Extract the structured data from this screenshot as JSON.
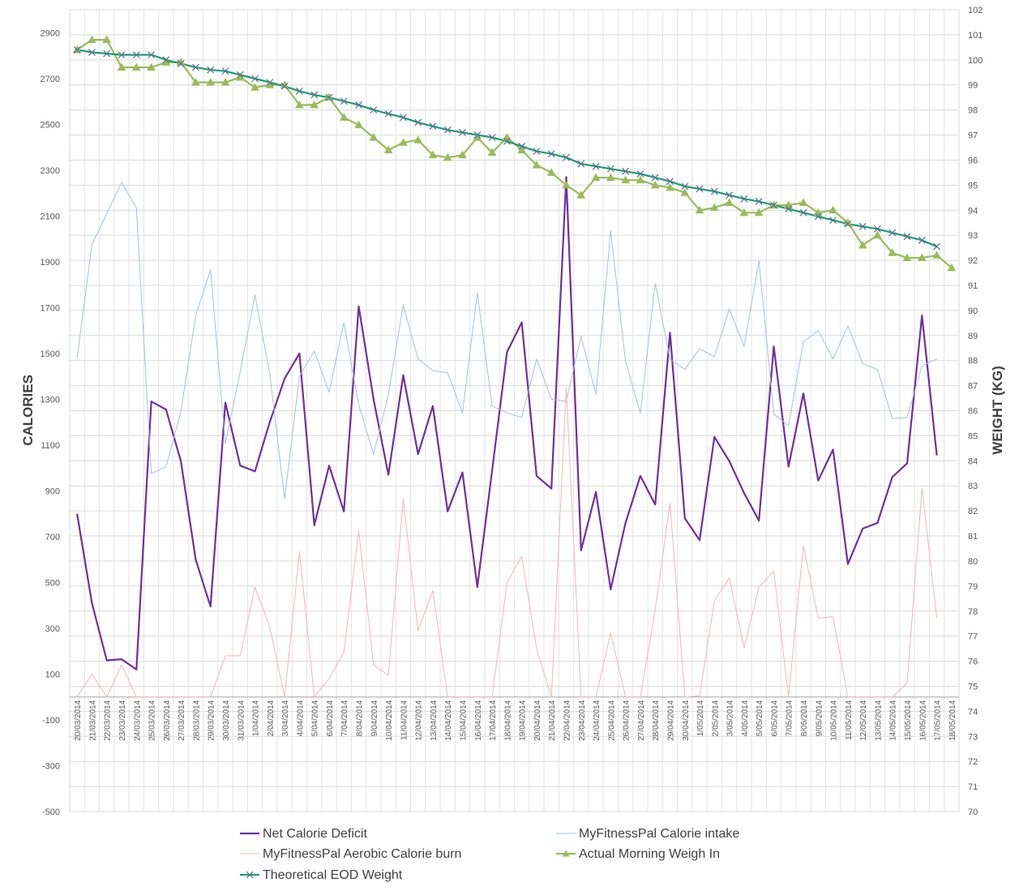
{
  "chart_data": {
    "type": "line",
    "ylabel": "CALORIES",
    "y2label": "WEIGHT (KG)",
    "ylim": [
      -500,
      3000
    ],
    "yticks": [
      -500,
      -300,
      -100,
      100,
      300,
      500,
      700,
      900,
      1100,
      1300,
      1500,
      1700,
      1900,
      2100,
      2300,
      2500,
      2700,
      2900
    ],
    "y2lim": [
      70,
      102
    ],
    "y2ticks": [
      70,
      71,
      72,
      73,
      74,
      75,
      76,
      77,
      78,
      79,
      80,
      81,
      82,
      83,
      84,
      85,
      86,
      87,
      88,
      89,
      90,
      91,
      92,
      93,
      94,
      95,
      96,
      97,
      98,
      99,
      100,
      101,
      102
    ],
    "grid": true,
    "legend_position": "bottom",
    "categories": [
      "20/03/2014",
      "21/03/2014",
      "22/03/2014",
      "23/03/2014",
      "24/03/2014",
      "25/03/2014",
      "26/03/2014",
      "27/03/2014",
      "28/03/2014",
      "29/03/2014",
      "30/03/2014",
      "31/03/2014",
      "1/04/2014",
      "2/04/2014",
      "3/04/2014",
      "4/04/2014",
      "5/04/2014",
      "6/04/2014",
      "7/04/2014",
      "8/04/2014",
      "9/04/2014",
      "10/04/2014",
      "11/04/2014",
      "12/04/2014",
      "13/04/2014",
      "14/04/2014",
      "15/04/2014",
      "16/04/2014",
      "17/04/2014",
      "18/04/2014",
      "19/04/2014",
      "20/04/2014",
      "21/04/2014",
      "22/04/2014",
      "23/04/2014",
      "24/04/2014",
      "25/04/2014",
      "26/04/2014",
      "27/04/2014",
      "28/04/2014",
      "29/04/2014",
      "30/04/2014",
      "1/05/2014",
      "2/05/2014",
      "3/05/2014",
      "4/05/2014",
      "5/05/2014",
      "6/05/2014",
      "7/05/2014",
      "8/05/2014",
      "9/05/2014",
      "10/05/2014",
      "11/05/2014",
      "12/05/2014",
      "13/05/2014",
      "14/05/2014",
      "15/05/2014",
      "16/05/2014",
      "17/05/2014",
      "18/05/2014"
    ],
    "series": [
      {
        "name": "Net Calorie Deficit",
        "axis": "left",
        "color": "#7030a0",
        "marker": "none",
        "values": [
          800,
          410,
          160,
          165,
          120,
          1290,
          1255,
          1030,
          600,
          395,
          1285,
          1010,
          985,
          1200,
          1390,
          1500,
          750,
          1010,
          810,
          1705,
          1300,
          970,
          1405,
          1060,
          1270,
          810,
          980,
          480,
          990,
          1505,
          1635,
          965,
          910,
          2270,
          640,
          895,
          470,
          760,
          965,
          840,
          1590,
          780,
          685,
          1135,
          1030,
          890,
          770,
          1530,
          1005,
          1325,
          945,
          1080,
          580,
          735,
          760,
          960,
          1020,
          1665,
          1055,
          null
        ]
      },
      {
        "name": "MyFitnessPal Calorie intake",
        "axis": "left",
        "color": "#9dc3e6",
        "marker": "none",
        "values": [
          1480,
          1975,
          2110,
          2245,
          2135,
          975,
          1005,
          1245,
          1665,
          1865,
          1105,
          1420,
          1755,
          1410,
          865,
          1400,
          1510,
          1330,
          1635,
          1275,
          1060,
          1320,
          1710,
          1475,
          1425,
          1415,
          1240,
          1765,
          1270,
          1240,
          1220,
          1475,
          1300,
          1290,
          1575,
          1320,
          2035,
          1465,
          1240,
          1805,
          1475,
          1430,
          1520,
          1485,
          1695,
          1530,
          1905,
          1235,
          1185,
          1550,
          1600,
          1475,
          1620,
          1455,
          1430,
          1215,
          1220,
          1445,
          1475,
          null
        ]
      },
      {
        "name": "MyFitnessPal Aerobic Calorie burn",
        "axis": "left",
        "color": "#f4b6b6",
        "marker": "none",
        "values": [
          0,
          100,
          0,
          140,
          0,
          0,
          0,
          0,
          0,
          0,
          180,
          180,
          480,
          305,
          0,
          635,
          0,
          80,
          195,
          725,
          140,
          95,
          865,
          290,
          465,
          0,
          0,
          0,
          0,
          500,
          615,
          210,
          0,
          1350,
          0,
          0,
          280,
          0,
          0,
          380,
          845,
          0,
          5,
          420,
          520,
          215,
          480,
          550,
          0,
          660,
          345,
          350,
          0,
          0,
          0,
          0,
          60,
          910,
          345,
          null
        ]
      },
      {
        "name": "Actual Morning Weigh In",
        "axis": "right",
        "color": "#9bbb59",
        "marker": "triangle",
        "values": [
          100.4,
          100.8,
          100.8,
          99.7,
          99.7,
          99.7,
          99.9,
          99.9,
          99.1,
          99.1,
          99.1,
          99.3,
          98.9,
          99.0,
          99.0,
          98.2,
          98.2,
          98.5,
          97.7,
          97.4,
          96.9,
          96.4,
          96.7,
          96.8,
          96.2,
          96.1,
          96.2,
          96.9,
          96.3,
          96.9,
          96.4,
          95.8,
          95.5,
          95.0,
          94.6,
          95.3,
          95.3,
          95.2,
          95.2,
          95.0,
          94.9,
          94.7,
          94.0,
          94.1,
          94.3,
          93.9,
          93.9,
          94.2,
          94.2,
          94.3,
          93.9,
          94.0,
          93.5,
          92.6,
          93.0,
          92.3,
          92.1,
          92.1,
          92.2,
          91.7
        ]
      },
      {
        "name": "Theoretical EOD Weight",
        "axis": "right",
        "color": "#1a9e6e",
        "marker": "x",
        "values": [
          100.4,
          100.3,
          100.25,
          100.2,
          100.2,
          100.2,
          100.0,
          99.85,
          99.7,
          99.6,
          99.55,
          99.4,
          99.25,
          99.1,
          98.95,
          98.75,
          98.6,
          98.5,
          98.35,
          98.2,
          98.0,
          97.85,
          97.7,
          97.5,
          97.35,
          97.2,
          97.1,
          97.0,
          96.9,
          96.75,
          96.55,
          96.35,
          96.25,
          96.1,
          95.85,
          95.75,
          95.65,
          95.55,
          95.45,
          95.3,
          95.15,
          94.95,
          94.85,
          94.75,
          94.6,
          94.45,
          94.35,
          94.2,
          94.05,
          93.9,
          93.75,
          93.6,
          93.45,
          93.35,
          93.25,
          93.1,
          92.95,
          92.8,
          92.55,
          null
        ]
      }
    ]
  }
}
